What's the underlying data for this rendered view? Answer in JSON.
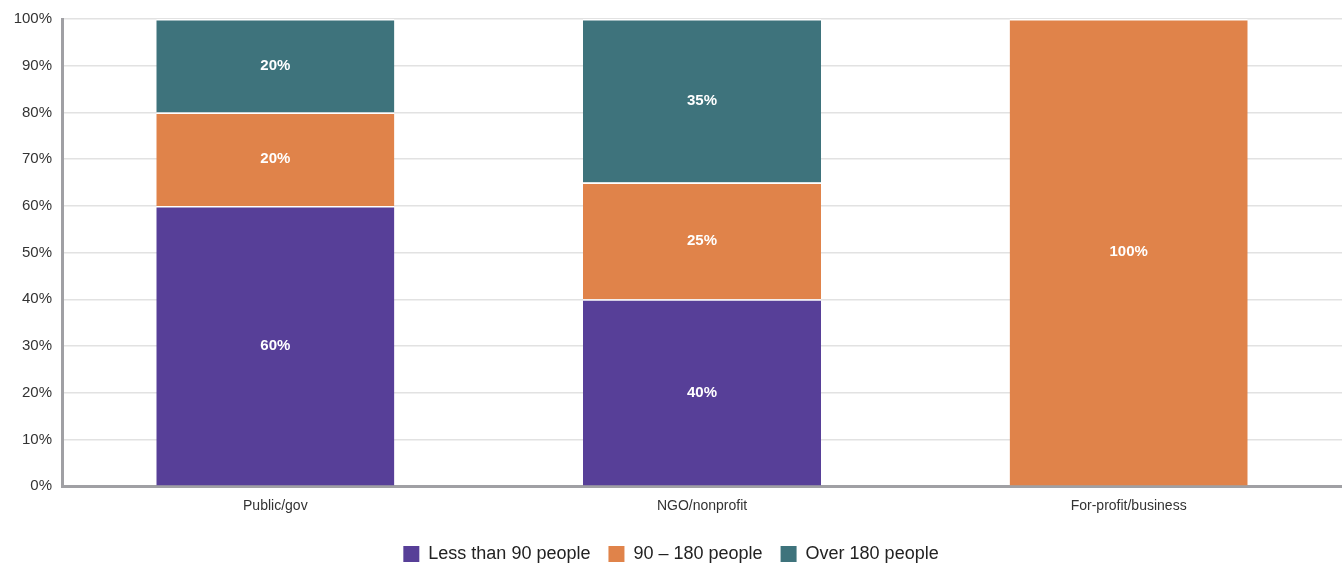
{
  "chart_data": {
    "type": "bar",
    "stacked": true,
    "categories": [
      "Public/gov",
      "NGO/nonprofit",
      "For-profit/business"
    ],
    "series": [
      {
        "name": "Less than 90 people",
        "color": "#573f98",
        "values": [
          60,
          40,
          0
        ],
        "value_labels": [
          "60%",
          "40%",
          null
        ]
      },
      {
        "name": "90 – 180 people",
        "color": "#e0834a",
        "values": [
          20,
          25,
          100
        ],
        "value_labels": [
          "20%",
          "25%",
          "100%"
        ]
      },
      {
        "name": "Over 180 people",
        "color": "#3e737c",
        "values": [
          20,
          35,
          0
        ],
        "value_labels": [
          "20%",
          "35%",
          null
        ]
      }
    ],
    "ylim": [
      0,
      100
    ],
    "yticks": [
      {
        "value": 0,
        "label": "0%"
      },
      {
        "value": 10,
        "label": "10%"
      },
      {
        "value": 20,
        "label": "20%"
      },
      {
        "value": 30,
        "label": "30%"
      },
      {
        "value": 40,
        "label": "40%"
      },
      {
        "value": 50,
        "label": "50%"
      },
      {
        "value": 60,
        "label": "60%"
      },
      {
        "value": 70,
        "label": "70%"
      },
      {
        "value": 80,
        "label": "80%"
      },
      {
        "value": 90,
        "label": "90%"
      },
      {
        "value": 100,
        "label": "100%"
      }
    ],
    "grid": "y",
    "legend": "bottom"
  }
}
